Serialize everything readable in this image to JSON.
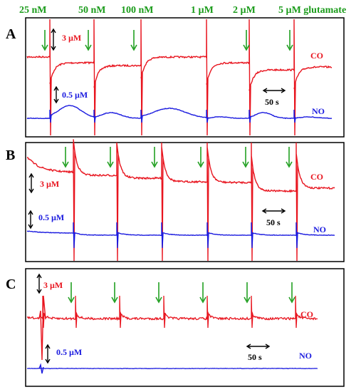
{
  "stim_labels": [
    "25 nM",
    "50 nM",
    "100 nM",
    "1 µM",
    "2 µM",
    "5 µM glutamate"
  ],
  "colors": {
    "co": "#e8141e",
    "no": "#1a1adf",
    "arrow": "#22a022",
    "label": "#1a9b1a",
    "frame": "#000000"
  },
  "panels": [
    {
      "id": "A",
      "co_label": "CO",
      "no_label": "NO",
      "co_scale": "3 µM",
      "no_scale": "0.5 µM",
      "time_scale": "50 s"
    },
    {
      "id": "B",
      "co_label": "CO",
      "no_label": "NO",
      "co_scale": "3 µM",
      "no_scale": "0.5 µM",
      "time_scale": "50 s"
    },
    {
      "id": "C",
      "co_label": "CO",
      "no_label": "NO",
      "co_scale": "3 µM",
      "no_scale": "0.5 µM",
      "time_scale": "50 s"
    }
  ],
  "chart_data": {
    "type": "line",
    "x_unit": "s",
    "series": [
      {
        "name": "CO"
      },
      {
        "name": "NO"
      }
    ]
  }
}
